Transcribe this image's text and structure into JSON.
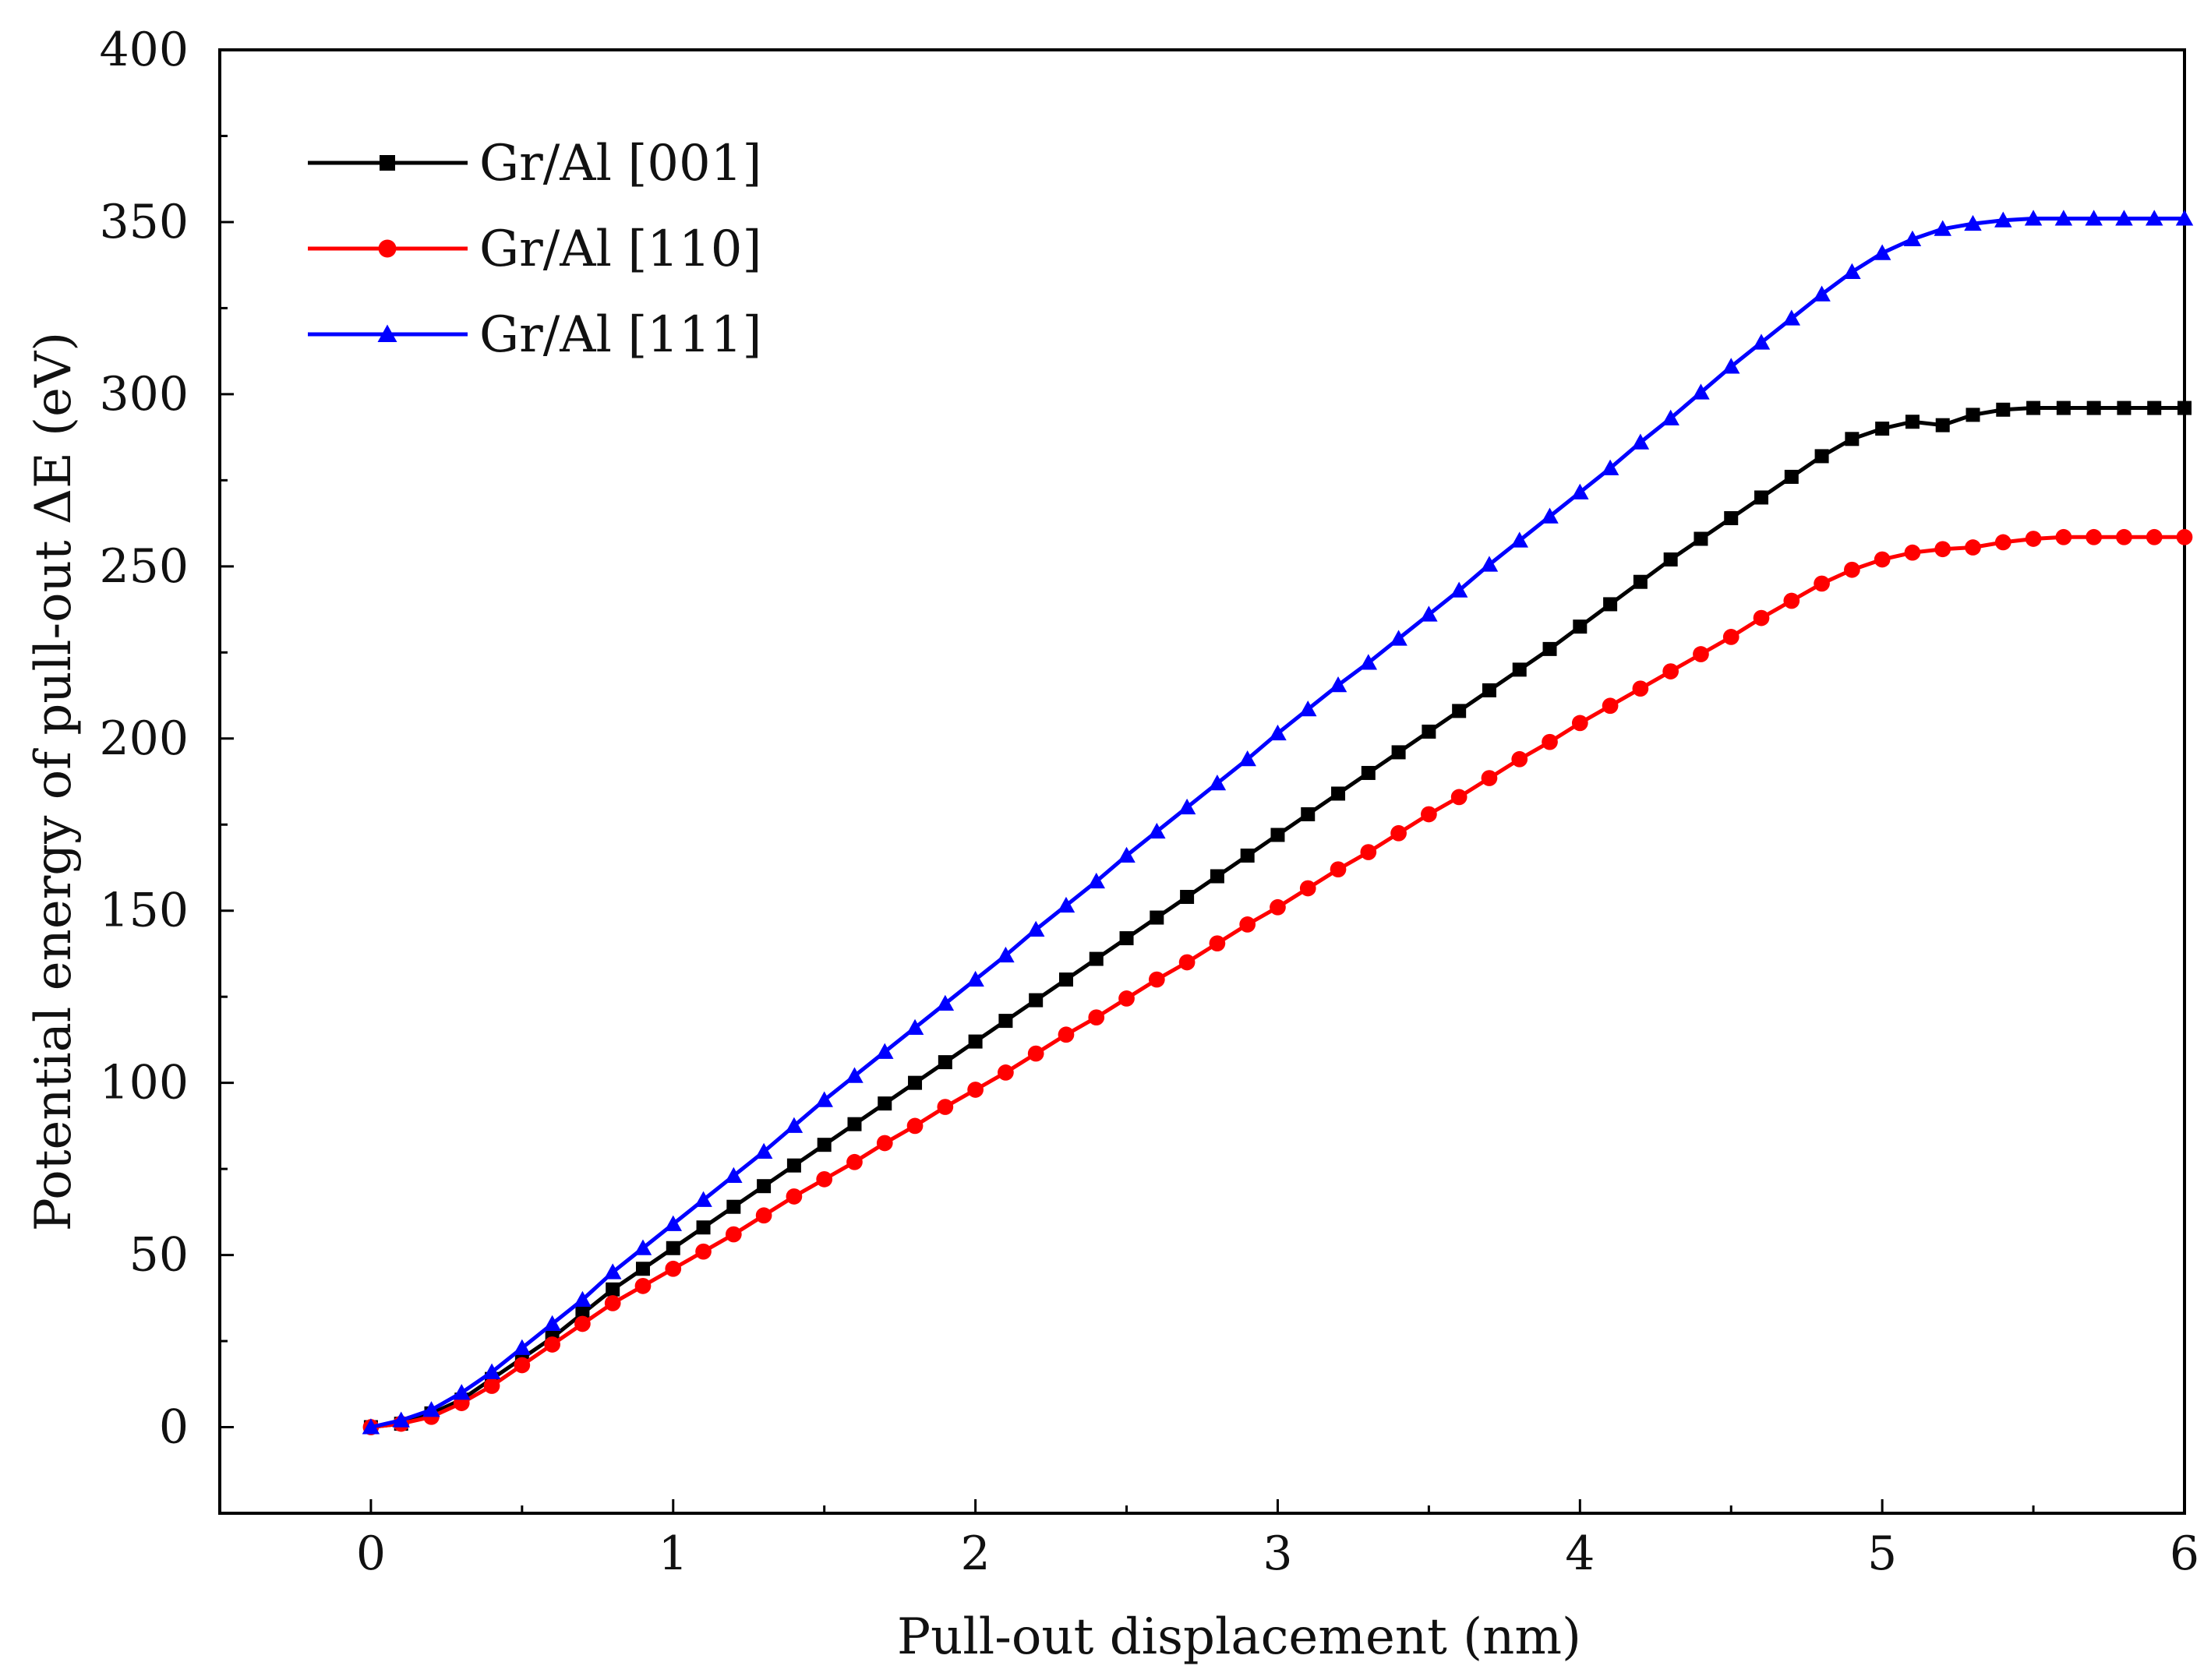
{
  "chart_data": {
    "type": "line",
    "xlabel": "Pull-out displacement (nm)",
    "ylabel": "Potential energy of pull-out ΔE (eV)",
    "xlim": [
      -0.5,
      6
    ],
    "ylim": [
      -25,
      400
    ],
    "xticks": [
      0,
      1,
      2,
      3,
      4,
      5,
      6
    ],
    "yticks": [
      0,
      50,
      100,
      150,
      200,
      250,
      300,
      350,
      400
    ],
    "legend_position": "top-left",
    "x": [
      0,
      0.1,
      0.2,
      0.3,
      0.4,
      0.5,
      0.6,
      0.7,
      0.8,
      0.9,
      1.0,
      1.1,
      1.2,
      1.3,
      1.4,
      1.5,
      1.6,
      1.7,
      1.8,
      1.9,
      2.0,
      2.1,
      2.2,
      2.3,
      2.4,
      2.5,
      2.6,
      2.7,
      2.8,
      2.9,
      3.0,
      3.1,
      3.2,
      3.3,
      3.4,
      3.5,
      3.6,
      3.7,
      3.8,
      3.9,
      4.0,
      4.1,
      4.2,
      4.3,
      4.4,
      4.5,
      4.6,
      4.7,
      4.8,
      4.9,
      5.0,
      5.1,
      5.2,
      5.3,
      5.4,
      5.5,
      5.6,
      5.7,
      5.8,
      5.9,
      6.0
    ],
    "series": [
      {
        "name": "Gr/Al [001]",
        "color": "#000000",
        "marker": "square",
        "values": [
          0,
          1,
          4,
          8,
          14,
          20,
          26,
          33,
          40,
          46,
          52,
          58,
          64,
          70,
          76,
          82,
          88,
          94,
          100,
          106,
          112,
          118,
          124,
          130,
          136,
          142,
          148,
          154,
          160,
          166,
          172,
          178,
          184,
          190,
          196,
          202,
          208,
          214,
          220,
          226,
          232.5,
          239,
          245.5,
          252,
          258,
          264,
          270,
          276,
          282,
          287,
          290,
          292,
          291,
          294,
          295.5,
          296,
          296,
          296,
          296,
          296,
          296
        ]
      },
      {
        "name": "Gr/Al [110]",
        "color": "#ff0000",
        "marker": "circle",
        "values": [
          0,
          1,
          3,
          7,
          12,
          18,
          24,
          30,
          36,
          41,
          46,
          51,
          56,
          61.5,
          67,
          72,
          77,
          82.5,
          87.5,
          93,
          98,
          103,
          108.5,
          114,
          119,
          124.5,
          130,
          135,
          140.5,
          146,
          151,
          156.5,
          162,
          167,
          172.5,
          178,
          183,
          188.5,
          194,
          199,
          204.5,
          209.5,
          214.5,
          219.5,
          224.5,
          229.5,
          235,
          240,
          245,
          249,
          252,
          254,
          255,
          255.5,
          257,
          258,
          258.5,
          258.5,
          258.5,
          258.5,
          258.5
        ]
      },
      {
        "name": "Gr/Al [111]",
        "color": "#0000ff",
        "marker": "triangle",
        "values": [
          0,
          2,
          5,
          10,
          16,
          23,
          30,
          37,
          45,
          52,
          59,
          66,
          73,
          80,
          87.5,
          95,
          102,
          109,
          116,
          123,
          130,
          137,
          144.5,
          151.5,
          158.5,
          166,
          173,
          180,
          187,
          194,
          201.5,
          208.5,
          215.5,
          222,
          229,
          236,
          243,
          250.5,
          257.5,
          264.5,
          271.5,
          278.5,
          286,
          293,
          300.5,
          308,
          315,
          322,
          329,
          335.5,
          341,
          345,
          348,
          349.5,
          350.5,
          351,
          351,
          351,
          351,
          351,
          351
        ]
      }
    ]
  }
}
